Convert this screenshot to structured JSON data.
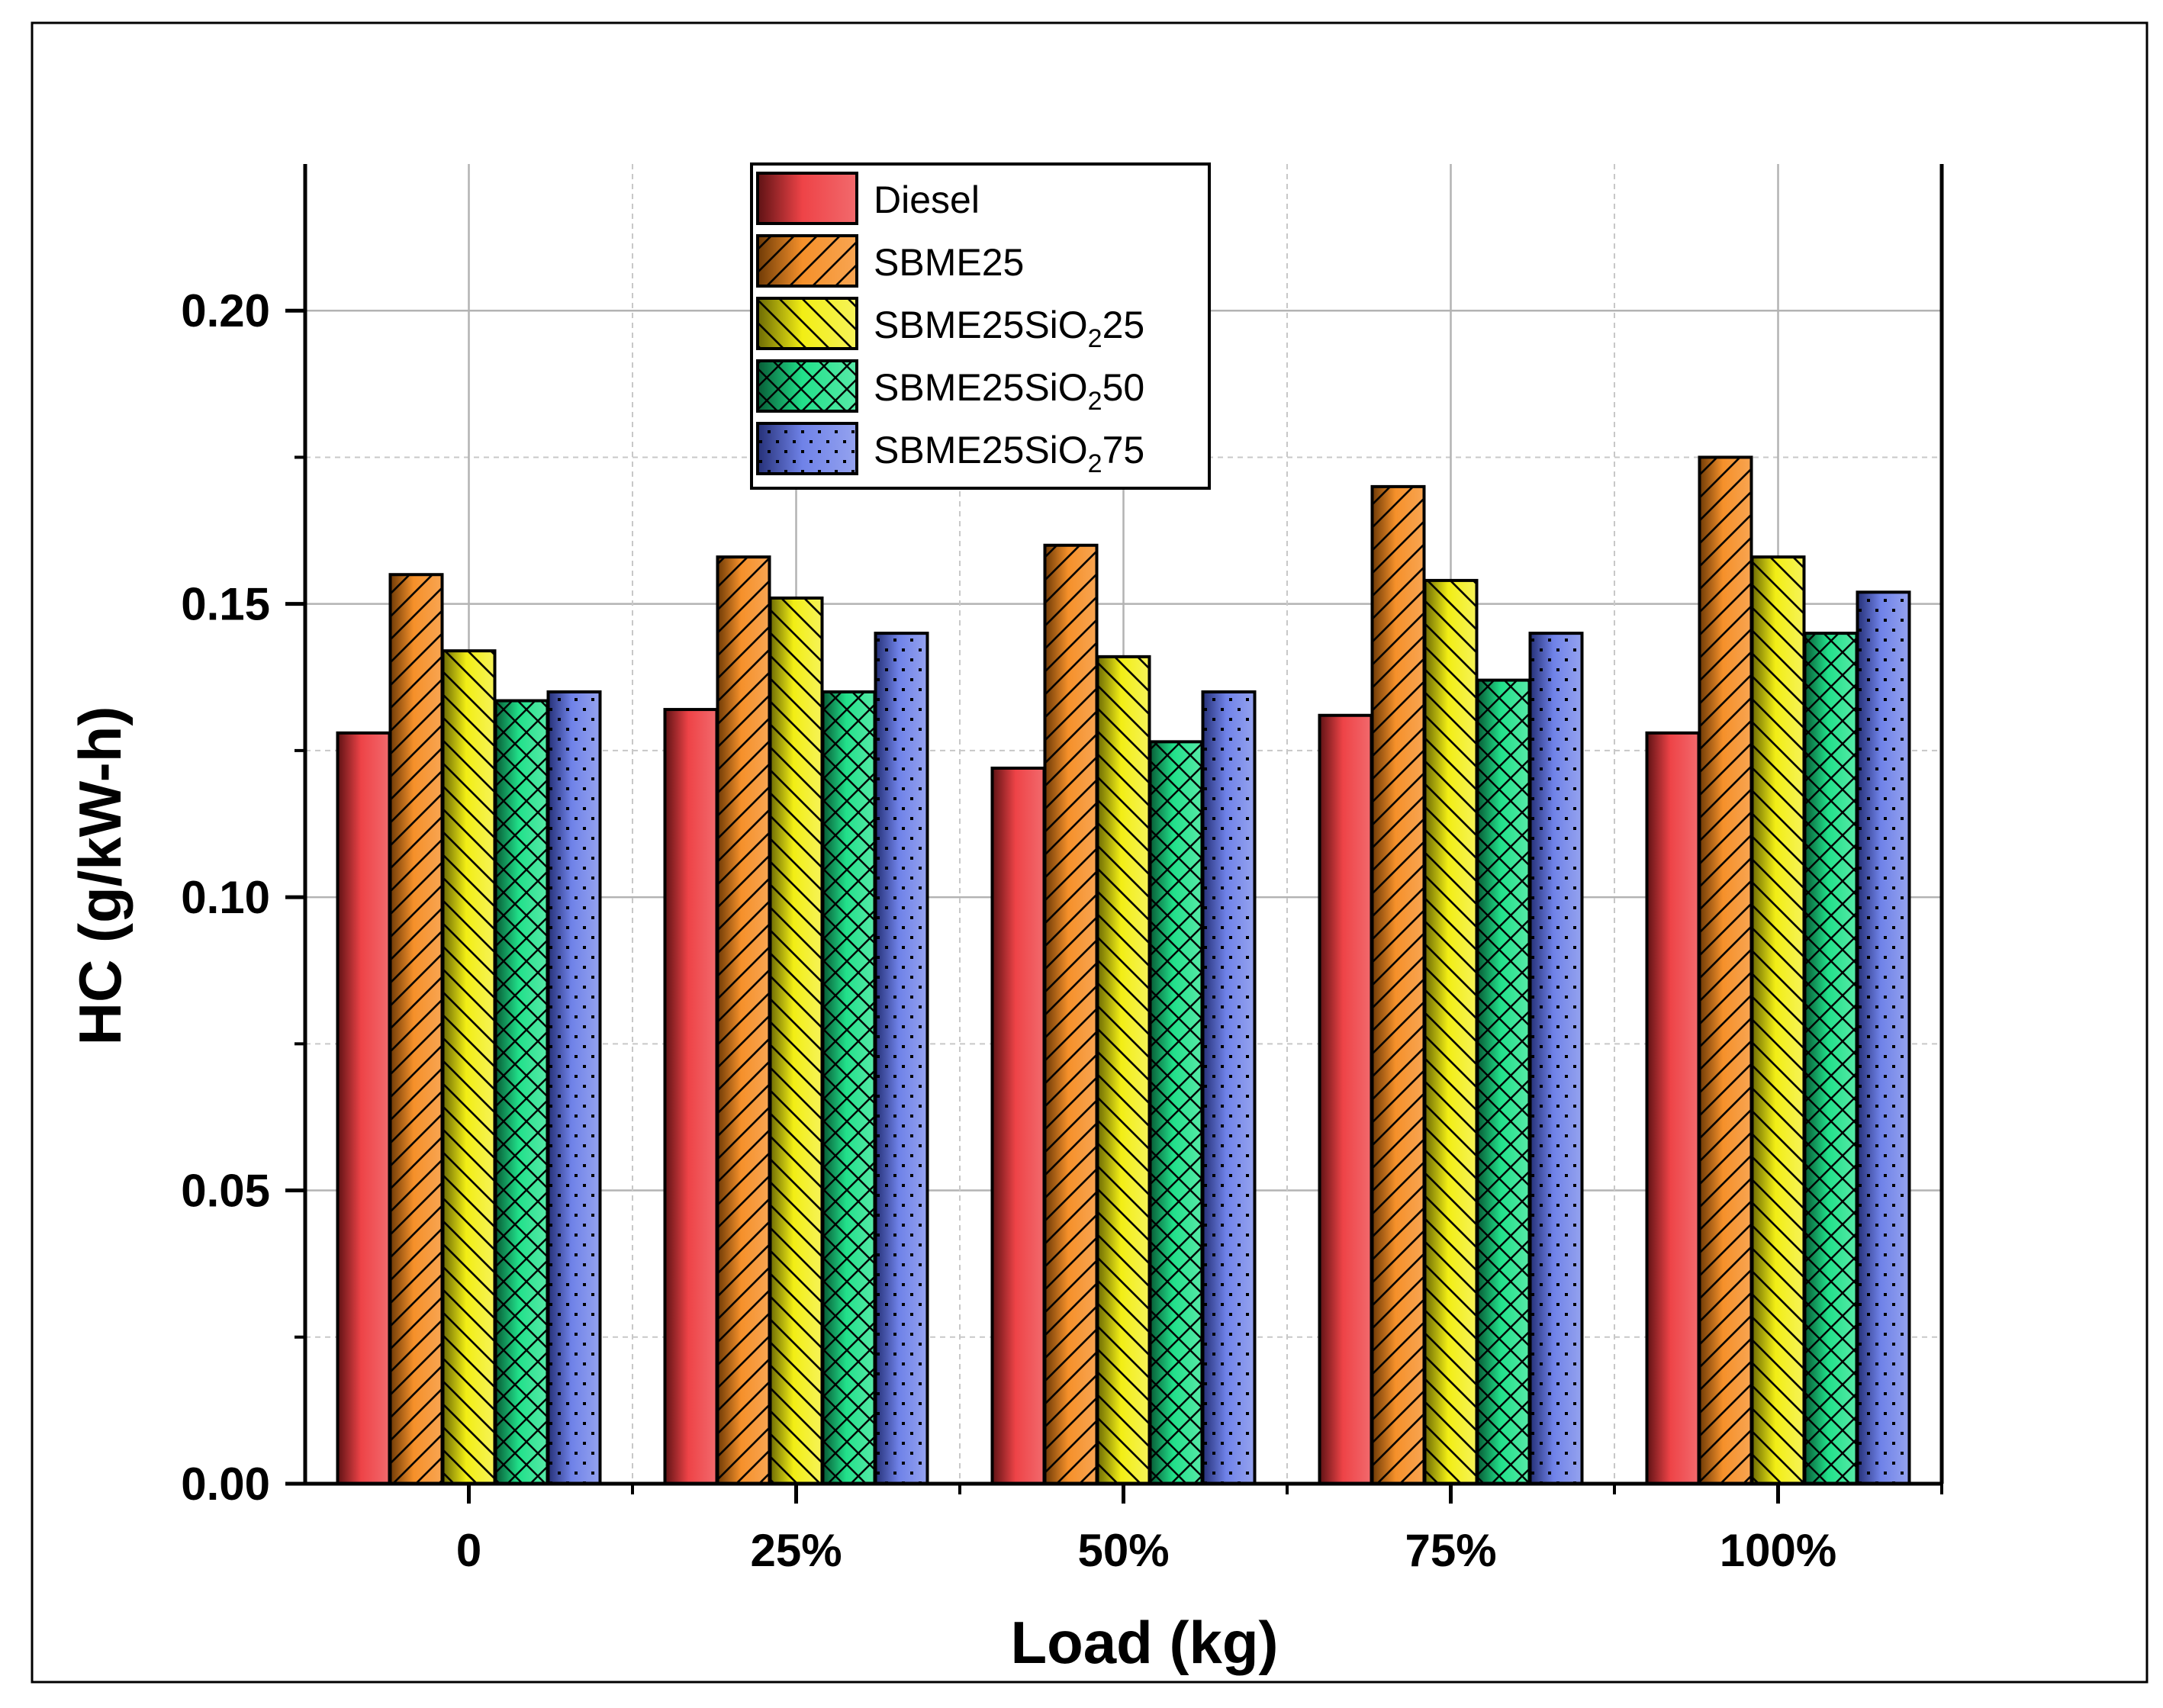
{
  "chart_data": {
    "type": "bar",
    "title": "",
    "xlabel": "Load (kg)",
    "ylabel": "HC (g/kW-h)",
    "ylim": [
      0,
      0.225
    ],
    "yticks": [
      "0.00",
      "0.05",
      "0.10",
      "0.15",
      "0.20"
    ],
    "categories": [
      "0",
      "25%",
      "50%",
      "75%",
      "100%"
    ],
    "grid": "on",
    "legend_position": "top-center",
    "series": [
      {
        "name": "Diesel",
        "legend_main": "Diesel",
        "legend_sub": "",
        "legend_tail": "",
        "pattern": "none",
        "color": "#ee4347",
        "values": [
          0.128,
          0.132,
          0.122,
          0.131,
          0.128
        ]
      },
      {
        "name": "SBME25",
        "legend_main": "SBME25",
        "legend_sub": "",
        "legend_tail": "",
        "pattern": "fwd-hatch",
        "color": "#f5902a",
        "values": [
          0.155,
          0.158,
          0.16,
          0.17,
          0.175
        ]
      },
      {
        "name": "SBME25SiO225",
        "legend_main": "SBME25SiO",
        "legend_sub": "2",
        "legend_tail": "25",
        "pattern": "back-hatch",
        "color": "#f2ee14",
        "values": [
          0.142,
          0.151,
          0.141,
          0.154,
          0.158
        ]
      },
      {
        "name": "SBME25SiO250",
        "legend_main": "SBME25SiO",
        "legend_sub": "2",
        "legend_tail": "50",
        "pattern": "crosshatch",
        "color": "#21e08a",
        "values": [
          0.1335,
          0.135,
          0.1265,
          0.137,
          0.145
        ]
      },
      {
        "name": "SBME25SiO275",
        "legend_main": "SBME25SiO",
        "legend_sub": "2",
        "legend_tail": "75",
        "pattern": "dots",
        "color": "#6f82e8",
        "values": [
          0.135,
          0.145,
          0.135,
          0.145,
          0.152
        ]
      }
    ]
  }
}
